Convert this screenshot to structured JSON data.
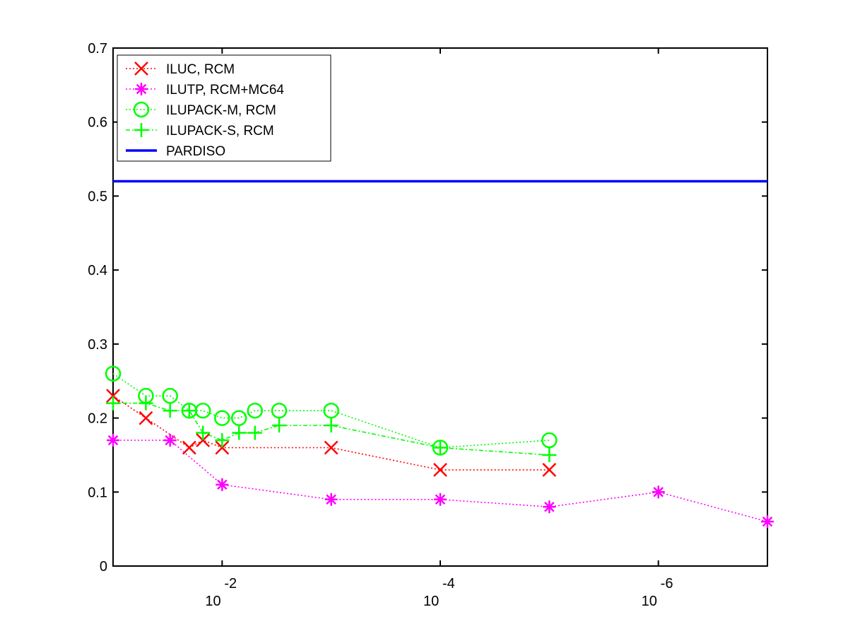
{
  "chart_data": {
    "type": "line",
    "title": "",
    "xlabel": "",
    "ylabel": "",
    "xscale": "log-decreasing",
    "xlim": [
      0.1,
      1e-07
    ],
    "ylim": [
      0,
      0.7
    ],
    "grid": false,
    "legend_position": "top-left",
    "y_ticks": [
      "0",
      "0.1",
      "0.2",
      "0.3",
      "0.4",
      "0.5",
      "0.6",
      "0.7"
    ],
    "x_ticks": [
      {
        "value": 0.01,
        "base": "10",
        "exponent": "-2"
      },
      {
        "value": 0.0001,
        "base": "10",
        "exponent": "-4"
      },
      {
        "value": 1e-06,
        "base": "10",
        "exponent": "-6"
      }
    ],
    "series": [
      {
        "name": "ILUC, RCM",
        "color": "#ff0000",
        "marker": "x",
        "linestyle": "dotted",
        "points": [
          [
            0.1,
            0.23
          ],
          [
            0.05,
            0.2
          ],
          [
            0.02,
            0.16
          ],
          [
            0.015,
            0.17
          ],
          [
            0.01,
            0.16
          ],
          [
            0.001,
            0.16
          ],
          [
            0.0001,
            0.13
          ],
          [
            1e-05,
            0.13
          ]
        ]
      },
      {
        "name": "ILUTP, RCM+MC64",
        "color": "#ff00ff",
        "marker": "asterisk",
        "linestyle": "dotted",
        "points": [
          [
            0.1,
            0.17
          ],
          [
            0.03,
            0.17
          ],
          [
            0.01,
            0.11
          ],
          [
            0.001,
            0.09
          ],
          [
            0.0001,
            0.09
          ],
          [
            1e-05,
            0.08
          ],
          [
            1e-06,
            0.1
          ],
          [
            1e-07,
            0.06
          ]
        ]
      },
      {
        "name": "ILUPACK-M, RCM",
        "color": "#00ff00",
        "marker": "circle",
        "linestyle": "dotted",
        "points": [
          [
            0.1,
            0.26
          ],
          [
            0.05,
            0.23
          ],
          [
            0.03,
            0.23
          ],
          [
            0.02,
            0.21
          ],
          [
            0.015,
            0.21
          ],
          [
            0.01,
            0.2
          ],
          [
            0.007,
            0.2
          ],
          [
            0.005,
            0.21
          ],
          [
            0.003,
            0.21
          ],
          [
            0.001,
            0.21
          ],
          [
            0.0001,
            0.16
          ],
          [
            1e-05,
            0.17
          ]
        ]
      },
      {
        "name": "ILUPACK-S, RCM",
        "color": "#00ff00",
        "marker": "plus",
        "linestyle": "dashdot",
        "points": [
          [
            0.1,
            0.22
          ],
          [
            0.05,
            0.22
          ],
          [
            0.03,
            0.21
          ],
          [
            0.02,
            0.21
          ],
          [
            0.015,
            0.18
          ],
          [
            0.01,
            0.17
          ],
          [
            0.007,
            0.18
          ],
          [
            0.005,
            0.18
          ],
          [
            0.003,
            0.19
          ],
          [
            0.001,
            0.19
          ],
          [
            0.0001,
            0.16
          ],
          [
            1e-05,
            0.15
          ]
        ]
      },
      {
        "name": "PARDISO",
        "color": "#0000ff",
        "marker": "none",
        "linestyle": "solid",
        "points": [
          [
            0.1,
            0.52
          ],
          [
            1e-07,
            0.52
          ]
        ]
      }
    ]
  }
}
